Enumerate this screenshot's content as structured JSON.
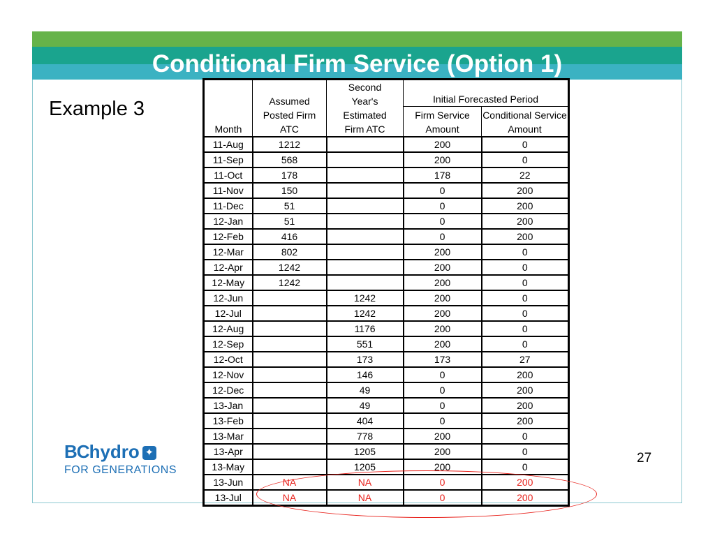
{
  "slide": {
    "title": "Conditional Firm Service (Option 1)",
    "example_label": "Example 3",
    "page_number": "27"
  },
  "logo": {
    "bc": "BC",
    "hydro": "hydro",
    "tagline": "FOR GENERATIONS"
  },
  "table": {
    "headers": {
      "month": "Month",
      "assumed": "Assumed Posted Firm ATC",
      "second": "Second Year's Estimated Firm ATC",
      "group": "Initial Forecasted Period",
      "firm": "Firm Service Amount",
      "conditional": "Conditional Service Amount"
    },
    "rows": [
      {
        "month": "11-Aug",
        "assumed": "1212",
        "second": "",
        "firm": "200",
        "cond": "0"
      },
      {
        "month": "11-Sep",
        "assumed": "568",
        "second": "",
        "firm": "200",
        "cond": "0"
      },
      {
        "month": "11-Oct",
        "assumed": "178",
        "second": "",
        "firm": "178",
        "cond": "22"
      },
      {
        "month": "11-Nov",
        "assumed": "150",
        "second": "",
        "firm": "0",
        "cond": "200"
      },
      {
        "month": "11-Dec",
        "assumed": "51",
        "second": "",
        "firm": "0",
        "cond": "200"
      },
      {
        "month": "12-Jan",
        "assumed": "51",
        "second": "",
        "firm": "0",
        "cond": "200"
      },
      {
        "month": "12-Feb",
        "assumed": "416",
        "second": "",
        "firm": "0",
        "cond": "200"
      },
      {
        "month": "12-Mar",
        "assumed": "802",
        "second": "",
        "firm": "200",
        "cond": "0"
      },
      {
        "month": "12-Apr",
        "assumed": "1242",
        "second": "",
        "firm": "200",
        "cond": "0"
      },
      {
        "month": "12-May",
        "assumed": "1242",
        "second": "",
        "firm": "200",
        "cond": "0"
      },
      {
        "month": "12-Jun",
        "assumed": "",
        "second": "1242",
        "firm": "200",
        "cond": "0"
      },
      {
        "month": "12-Jul",
        "assumed": "",
        "second": "1242",
        "firm": "200",
        "cond": "0"
      },
      {
        "month": "12-Aug",
        "assumed": "",
        "second": "1176",
        "firm": "200",
        "cond": "0"
      },
      {
        "month": "12-Sep",
        "assumed": "",
        "second": "551",
        "firm": "200",
        "cond": "0"
      },
      {
        "month": "12-Oct",
        "assumed": "",
        "second": "173",
        "firm": "173",
        "cond": "27"
      },
      {
        "month": "12-Nov",
        "assumed": "",
        "second": "146",
        "firm": "0",
        "cond": "200"
      },
      {
        "month": "12-Dec",
        "assumed": "",
        "second": "49",
        "firm": "0",
        "cond": "200"
      },
      {
        "month": "13-Jan",
        "assumed": "",
        "second": "49",
        "firm": "0",
        "cond": "200"
      },
      {
        "month": "13-Feb",
        "assumed": "",
        "second": "404",
        "firm": "0",
        "cond": "200"
      },
      {
        "month": "13-Mar",
        "assumed": "",
        "second": "778",
        "firm": "200",
        "cond": "0"
      },
      {
        "month": "13-Apr",
        "assumed": "",
        "second": "1205",
        "firm": "200",
        "cond": "0"
      },
      {
        "month": "13-May",
        "assumed": "",
        "second": "1205",
        "firm": "200",
        "cond": "0"
      },
      {
        "month": "13-Jun",
        "assumed": "NA",
        "second": "NA",
        "firm": "0",
        "cond": "200",
        "highlight": true
      },
      {
        "month": "13-Jul",
        "assumed": "NA",
        "second": "NA",
        "firm": "0",
        "cond": "200",
        "highlight": true
      }
    ]
  },
  "colors": {
    "band_green": "#66b34a",
    "band_teal": "#1aa48e",
    "band_cyan": "#3bb2c2",
    "highlight_red": "#e8221c",
    "brand_blue": "#1d6fb5"
  }
}
